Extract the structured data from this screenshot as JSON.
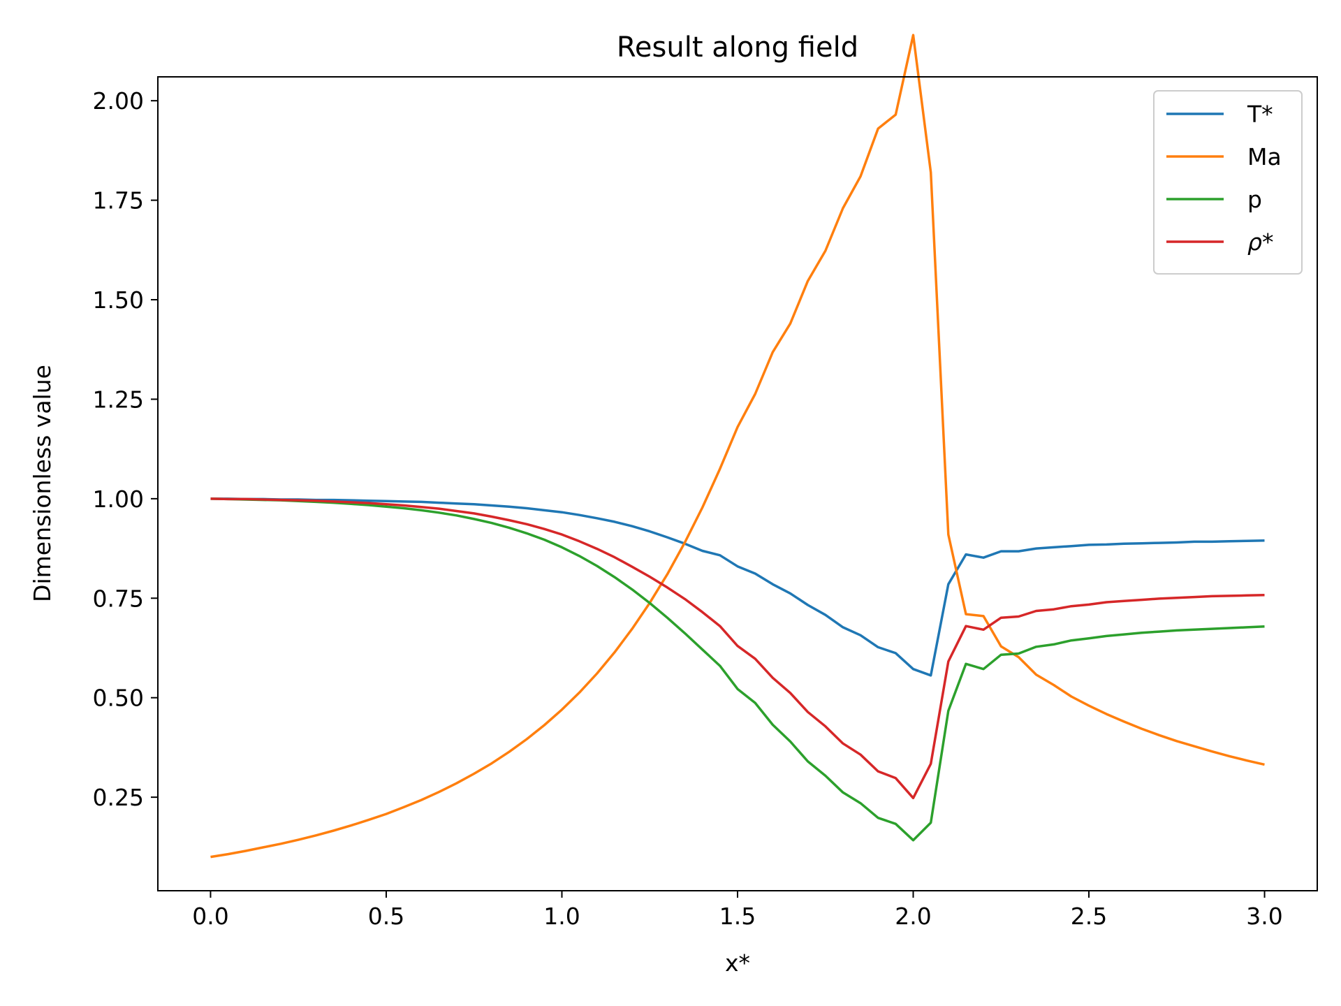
{
  "chart_data": {
    "type": "line",
    "title": "Result along field",
    "xlabel": "x*",
    "ylabel": "Dimensionless value",
    "xlim": [
      -0.15,
      3.15
    ],
    "ylim": [
      0.015,
      2.06
    ],
    "xticks": [
      0.0,
      0.5,
      1.0,
      1.5,
      2.0,
      2.5,
      3.0
    ],
    "xtick_labels": [
      "0.0",
      "0.5",
      "1.0",
      "1.5",
      "2.0",
      "2.5",
      "3.0"
    ],
    "yticks": [
      0.25,
      0.5,
      0.75,
      1.0,
      1.25,
      1.5,
      1.75,
      2.0
    ],
    "ytick_labels": [
      "0.25",
      "0.50",
      "0.75",
      "1.00",
      "1.25",
      "1.50",
      "1.75",
      "2.00"
    ],
    "grid": false,
    "legend_position": "top-right",
    "x": [
      0.0,
      0.05,
      0.1,
      0.15,
      0.2,
      0.25,
      0.3,
      0.35,
      0.4,
      0.45,
      0.5,
      0.55,
      0.6,
      0.65,
      0.7,
      0.75,
      0.8,
      0.85,
      0.9,
      0.95,
      1.0,
      1.05,
      1.1,
      1.15,
      1.2,
      1.25,
      1.3,
      1.35,
      1.4,
      1.45,
      1.5,
      1.55,
      1.6,
      1.65,
      1.7,
      1.75,
      1.8,
      1.85,
      1.9,
      1.95,
      2.0,
      2.05,
      2.1,
      2.15,
      2.2,
      2.25,
      2.3,
      2.35,
      2.4,
      2.45,
      2.5,
      2.55,
      2.6,
      2.65,
      2.7,
      2.75,
      2.8,
      2.85,
      2.9,
      2.95,
      3.0
    ],
    "series": [
      {
        "name": "T*",
        "color": "#1f77b4",
        "values": [
          1.0,
          1.0,
          0.999,
          0.999,
          0.998,
          0.998,
          0.997,
          0.997,
          0.996,
          0.995,
          0.994,
          0.993,
          0.992,
          0.99,
          0.988,
          0.986,
          0.983,
          0.98,
          0.976,
          0.971,
          0.966,
          0.959,
          0.951,
          0.942,
          0.931,
          0.918,
          0.903,
          0.887,
          0.869,
          0.858,
          0.83,
          0.812,
          0.785,
          0.762,
          0.733,
          0.708,
          0.677,
          0.657,
          0.627,
          0.612,
          0.572,
          0.556,
          0.785,
          0.86,
          0.852,
          0.868,
          0.868,
          0.875,
          0.878,
          0.881,
          0.884,
          0.885,
          0.887,
          0.888,
          0.889,
          0.89,
          0.892,
          0.892,
          0.893,
          0.894,
          0.895
        ]
      },
      {
        "name": "Ma",
        "color": "#ff7f0e",
        "values": [
          0.1,
          0.107,
          0.115,
          0.124,
          0.133,
          0.143,
          0.154,
          0.166,
          0.179,
          0.193,
          0.208,
          0.225,
          0.243,
          0.263,
          0.285,
          0.309,
          0.335,
          0.364,
          0.396,
          0.431,
          0.47,
          0.513,
          0.561,
          0.614,
          0.673,
          0.738,
          0.81,
          0.89,
          0.978,
          1.075,
          1.18,
          1.263,
          1.368,
          1.44,
          1.547,
          1.623,
          1.73,
          1.81,
          1.93,
          1.965,
          2.165,
          1.82,
          0.91,
          0.71,
          0.705,
          0.629,
          0.602,
          0.558,
          0.532,
          0.503,
          0.48,
          0.459,
          0.44,
          0.422,
          0.406,
          0.391,
          0.378,
          0.365,
          0.353,
          0.342,
          0.332
        ]
      },
      {
        "name": "p",
        "color": "#2ca02c",
        "values": [
          1.0,
          0.999,
          0.998,
          0.997,
          0.996,
          0.994,
          0.992,
          0.99,
          0.987,
          0.984,
          0.98,
          0.976,
          0.971,
          0.965,
          0.958,
          0.949,
          0.939,
          0.927,
          0.913,
          0.897,
          0.878,
          0.856,
          0.831,
          0.803,
          0.772,
          0.738,
          0.701,
          0.662,
          0.621,
          0.58,
          0.522,
          0.487,
          0.432,
          0.39,
          0.34,
          0.304,
          0.262,
          0.235,
          0.198,
          0.183,
          0.142,
          0.186,
          0.467,
          0.585,
          0.572,
          0.608,
          0.611,
          0.628,
          0.634,
          0.644,
          0.649,
          0.655,
          0.659,
          0.663,
          0.666,
          0.669,
          0.671,
          0.673,
          0.675,
          0.677,
          0.679
        ]
      },
      {
        "name": "ρ*",
        "color": "#d62728",
        "values": [
          1.0,
          0.999,
          0.999,
          0.998,
          0.997,
          0.996,
          0.995,
          0.993,
          0.991,
          0.989,
          0.986,
          0.983,
          0.979,
          0.975,
          0.969,
          0.963,
          0.955,
          0.946,
          0.936,
          0.924,
          0.91,
          0.893,
          0.874,
          0.853,
          0.829,
          0.804,
          0.777,
          0.748,
          0.715,
          0.68,
          0.63,
          0.598,
          0.55,
          0.512,
          0.464,
          0.428,
          0.385,
          0.357,
          0.315,
          0.298,
          0.248,
          0.334,
          0.591,
          0.68,
          0.671,
          0.701,
          0.704,
          0.718,
          0.722,
          0.73,
          0.734,
          0.74,
          0.743,
          0.746,
          0.749,
          0.751,
          0.753,
          0.755,
          0.756,
          0.757,
          0.758
        ]
      }
    ]
  }
}
